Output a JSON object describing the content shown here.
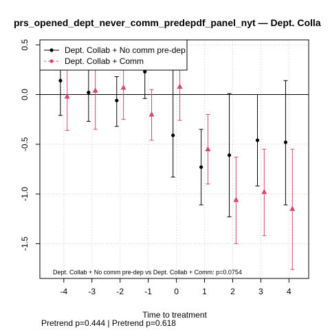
{
  "chart_data": {
    "type": "scatter",
    "title": "prs_opened_dept_never_comm_predepdf_panel_nyt — Dept. Colla",
    "xlabel": "Time to treatment",
    "ylabel": "",
    "xlim": [
      -4.85,
      4.7
    ],
    "ylim": [
      -1.85,
      0.55
    ],
    "x_ticks": [
      -4,
      -3,
      -2,
      -1,
      0,
      1,
      2,
      3,
      4
    ],
    "x_tick_labels": [
      "-4",
      "-3",
      "-2",
      "-1",
      "0",
      "1",
      "2",
      "3",
      "4"
    ],
    "y_ticks": [
      -1.5,
      -1.0,
      -0.5,
      0.0,
      0.5
    ],
    "y_tick_labels": [
      "-1.5",
      "-1.0",
      "-0.5",
      "0.0",
      "0.5"
    ],
    "grid": true,
    "reference_line_y": 0,
    "legend_position": "top-left",
    "series": [
      {
        "name": "Dept. Collab + No comm pre-dep",
        "color": "#000000",
        "marker": "circle",
        "x_offset": -0.12,
        "x": [
          -4,
          -3,
          -2,
          -1,
          0,
          1,
          2,
          3,
          4
        ],
        "y": [
          0.14,
          0.02,
          -0.06,
          0.23,
          -0.41,
          -0.73,
          -0.61,
          -0.46,
          -0.48
        ],
        "lower": [
          -0.21,
          -0.27,
          -0.32,
          -0.04,
          -0.83,
          -1.11,
          -1.23,
          -0.92,
          -1.11
        ],
        "upper": [
          0.55,
          0.55,
          0.18,
          0.55,
          0.55,
          -0.35,
          0.01,
          0.0,
          0.14
        ]
      },
      {
        "name": "Dept. Collab + Comm",
        "color": "#d6466e",
        "marker": "triangle",
        "x_offset": 0.12,
        "x": [
          -4,
          -3,
          -2,
          -1,
          0,
          1,
          2,
          3,
          4
        ],
        "y": [
          -0.02,
          0.04,
          0.07,
          -0.2,
          0.08,
          -0.55,
          -1.06,
          -0.98,
          -1.15
        ],
        "lower": [
          -0.36,
          -0.35,
          -0.25,
          -0.46,
          -0.26,
          -0.9,
          -1.5,
          -1.42,
          -1.76
        ],
        "upper": [
          0.55,
          0.55,
          0.55,
          0.05,
          0.55,
          -0.2,
          -0.63,
          -0.55,
          -0.55
        ]
      }
    ],
    "annotation": "Dept. Collab + No comm pre-dep vs Dept. Collab + Comm: p=0.0754",
    "footer": "Pretrend p=0.444 | Pretrend p=0.618"
  }
}
